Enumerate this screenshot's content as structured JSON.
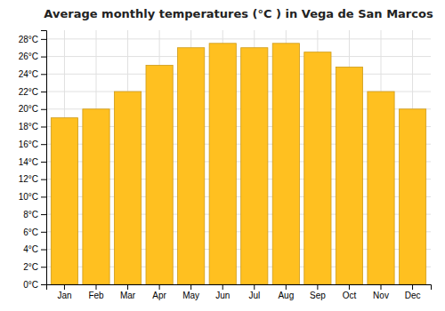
{
  "chart_data": {
    "type": "bar",
    "title": "Average monthly temperatures (°C ) in Vega de San Marcos",
    "categories": [
      "Jan",
      "Feb",
      "Mar",
      "Apr",
      "May",
      "Jun",
      "Jul",
      "Aug",
      "Sep",
      "Oct",
      "Nov",
      "Dec"
    ],
    "values": [
      19,
      20,
      22,
      25,
      27,
      27.5,
      27,
      27.5,
      26.5,
      24.8,
      22,
      20
    ],
    "color": "#FFC020",
    "ylim": [
      0,
      29
    ],
    "yticks": [
      {
        "value": 0,
        "label": "0°C"
      },
      {
        "value": 2,
        "label": "2°C"
      },
      {
        "value": 4,
        "label": "4°C"
      },
      {
        "value": 6,
        "label": "6°C"
      },
      {
        "value": 8,
        "label": "8°C"
      },
      {
        "value": 10,
        "label": "10°C"
      },
      {
        "value": 12,
        "label": "12°C"
      },
      {
        "value": 14,
        "label": "14°C"
      },
      {
        "value": 16,
        "label": "16°C"
      },
      {
        "value": 18,
        "label": "18°C"
      },
      {
        "value": 20,
        "label": "20°C"
      },
      {
        "value": 22,
        "label": "22°C"
      },
      {
        "value": 24,
        "label": "24°C"
      },
      {
        "value": 26,
        "label": "26°C"
      },
      {
        "value": 28,
        "label": "28°C"
      }
    ],
    "grid": true
  }
}
